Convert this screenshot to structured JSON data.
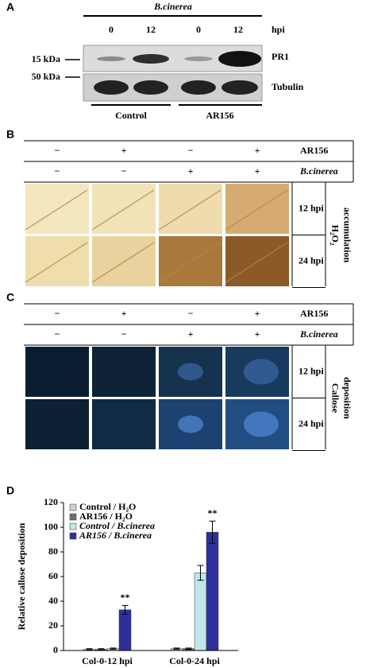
{
  "panel_a": {
    "label": "A",
    "pathogen": "B.cinerea",
    "lanes": [
      "0",
      "12",
      "0",
      "12"
    ],
    "lane_unit": "hpi",
    "markers": [
      "15 kDa",
      "50 kDa"
    ],
    "bands": [
      "PR1",
      "Tubulin"
    ],
    "groups": [
      "Control",
      "AR156"
    ]
  },
  "panel_b": {
    "label": "B",
    "treatments": [
      {
        "name": "AR156",
        "signs": [
          "−",
          "+",
          "−",
          "+"
        ]
      },
      {
        "name": "B.cinerea",
        "signs": [
          "−",
          "−",
          "+",
          "+"
        ]
      }
    ],
    "times": [
      "12 hpi",
      "24 hpi"
    ],
    "measure": [
      "H₂O₂",
      "accumulation"
    ]
  },
  "panel_c": {
    "label": "C",
    "treatments": [
      {
        "name": "AR156",
        "signs": [
          "−",
          "+",
          "−",
          "+"
        ]
      },
      {
        "name": "B.cinerea",
        "signs": [
          "−",
          "−",
          "+",
          "+"
        ]
      }
    ],
    "times": [
      "12 hpi",
      "24 hpi"
    ],
    "measure": [
      "Callose",
      "deposition"
    ]
  },
  "chart_data": {
    "type": "bar",
    "panel_label": "D",
    "y_label": "Relative callose deposition",
    "categories": [
      "Col-0-12 hpi",
      "Col-0-24 hpi"
    ],
    "series": [
      {
        "name": "Control / H₂O",
        "color": "#d0d0d0",
        "values": [
          1,
          1.5
        ],
        "errors": [
          0.5,
          0.5
        ]
      },
      {
        "name": "AR156 / H₂O",
        "color": "#6e6e6e",
        "values": [
          1,
          1.5
        ],
        "errors": [
          0.5,
          0.5
        ]
      },
      {
        "name": "Control / B.cinerea",
        "color": "#bfe6e8",
        "values": [
          1.5,
          63
        ],
        "errors": [
          0.5,
          6
        ]
      },
      {
        "name": "AR156 / B.cinerea",
        "color": "#2f2f9c",
        "values": [
          33,
          96
        ],
        "errors": [
          3.5,
          9
        ]
      }
    ],
    "annotations": [
      {
        "text": "**",
        "series": 3,
        "category": 0
      },
      {
        "text": "**",
        "series": 3,
        "category": 1
      }
    ],
    "ylim": [
      0,
      120
    ],
    "yticks": [
      0,
      20,
      40,
      60,
      80,
      100,
      120
    ],
    "grid": false,
    "legend": "upper left"
  }
}
